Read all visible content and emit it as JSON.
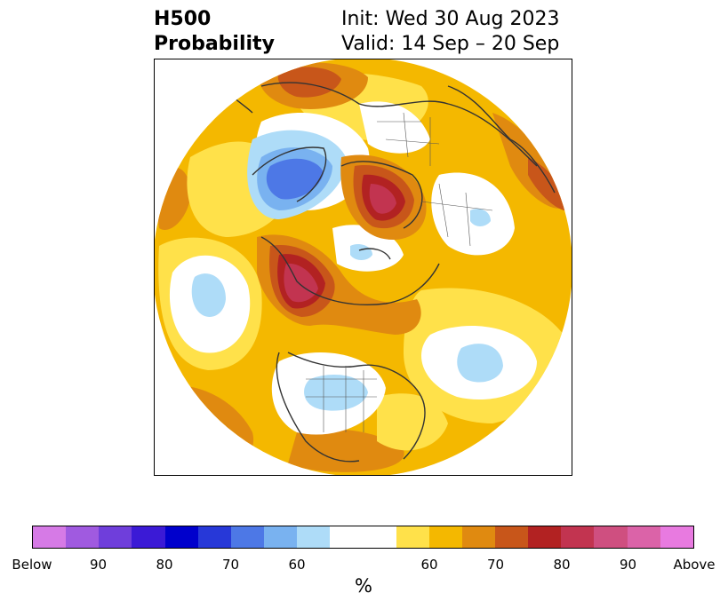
{
  "header": {
    "title_line1": "H500",
    "title_line2": "Probability",
    "init_text": "Init: Wed 30 Aug 2023",
    "valid_text": "Valid: 14 Sep – 20 Sep"
  },
  "colorbar": {
    "colors": [
      "#d67ae6",
      "#a05ae0",
      "#6f3edb",
      "#3b1ad6",
      "#0000cc",
      "#2738d8",
      "#4d78e6",
      "#79b2f0",
      "#aedcf8",
      "#ffffff",
      "#ffe14a",
      "#f4b800",
      "#e08a10",
      "#c8561a",
      "#b22222",
      "#c23450",
      "#cf4f80",
      "#db63a8",
      "#e87ae0"
    ],
    "tick_labels": [
      "Below",
      "90",
      "80",
      "70",
      "60",
      "60",
      "70",
      "80",
      "90",
      "Above"
    ],
    "unit": "%"
  },
  "map": {
    "palette": {
      "background": "#f4b800",
      "white": "#ffffff",
      "yellow": "#ffe14a",
      "orange": "#e08a10",
      "darkorange": "#c8561a",
      "red": "#b22222",
      "rose": "#c23450",
      "lightblue": "#aedcf8",
      "skyblue": "#79b2f0",
      "blue": "#4d78e6",
      "coast": "#333333"
    }
  }
}
